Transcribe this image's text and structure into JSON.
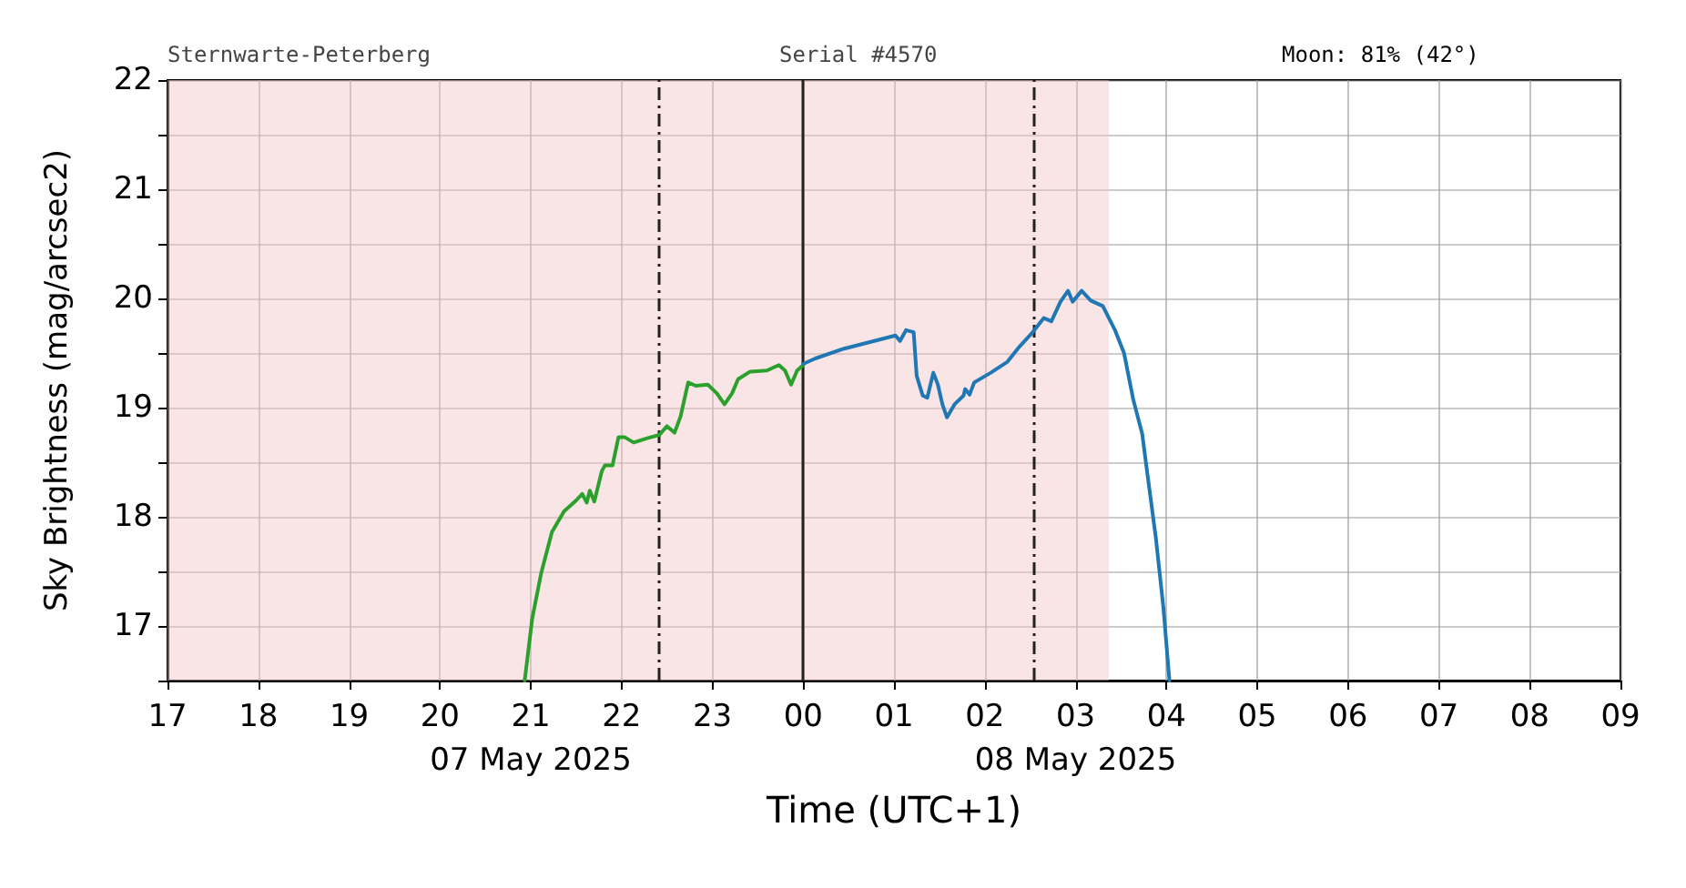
{
  "chart_data": {
    "type": "line",
    "xlabel": "Time (UTC+1)",
    "ylabel": "Sky Brightness (mag/arcsec2)",
    "annotations": [
      "Sternwarte-Peterberg",
      "Serial #4570",
      "Moon: 81% (42°)"
    ],
    "series": [
      {
        "color": "#2ca02c",
        "x": [
          "2025-05-07T20:56",
          "2025-05-07T21:01",
          "2025-05-07T21:07",
          "2025-05-07T21:14",
          "2025-05-07T21:22",
          "2025-05-07T21:30",
          "2025-05-07T21:34",
          "2025-05-07T21:37",
          "2025-05-07T21:39",
          "2025-05-07T21:42",
          "2025-05-07T21:47",
          "2025-05-07T21:49",
          "2025-05-07T21:54",
          "2025-05-07T21:58",
          "2025-05-07T22:02",
          "2025-05-07T22:08",
          "2025-05-07T22:17",
          "2025-05-07T22:25",
          "2025-05-07T22:30",
          "2025-05-07T22:35",
          "2025-05-07T22:39",
          "2025-05-07T22:44",
          "2025-05-07T22:49",
          "2025-05-07T22:57",
          "2025-05-07T23:03",
          "2025-05-07T23:08",
          "2025-05-07T23:13",
          "2025-05-07T23:17",
          "2025-05-07T23:25",
          "2025-05-07T23:36",
          "2025-05-07T23:44",
          "2025-05-07T23:48",
          "2025-05-07T23:52",
          "2025-05-07T23:56",
          "2025-05-08T00:00"
        ],
        "values": [
          16.5,
          17.07,
          17.49,
          17.86,
          18.05,
          18.15,
          18.21,
          18.13,
          18.24,
          18.14,
          18.42,
          18.47,
          18.47,
          18.73,
          18.73,
          18.68,
          18.72,
          18.75,
          18.83,
          18.77,
          18.92,
          19.23,
          19.2,
          19.21,
          19.13,
          19.03,
          19.13,
          19.26,
          19.33,
          19.34,
          19.39,
          19.34,
          19.21,
          19.34,
          19.39
        ]
      },
      {
        "color": "#1f77b4",
        "x": [
          "2025-05-08T00:00",
          "2025-05-08T00:08",
          "2025-05-08T00:27",
          "2025-05-08T00:47",
          "2025-05-08T01:01",
          "2025-05-08T01:04",
          "2025-05-08T01:08",
          "2025-05-08T01:13",
          "2025-05-08T01:15",
          "2025-05-08T01:19",
          "2025-05-08T01:22",
          "2025-05-08T01:26",
          "2025-05-08T01:29",
          "2025-05-08T01:32",
          "2025-05-08T01:35",
          "2025-05-08T01:40",
          "2025-05-08T01:46",
          "2025-05-08T01:47",
          "2025-05-08T01:50",
          "2025-05-08T01:53",
          "2025-05-08T02:04",
          "2025-05-08T02:15",
          "2025-05-08T02:23",
          "2025-05-08T02:31",
          "2025-05-08T02:39",
          "2025-05-08T02:44",
          "2025-05-08T02:50",
          "2025-05-08T02:55",
          "2025-05-08T02:58",
          "2025-05-08T03:04",
          "2025-05-08T03:10",
          "2025-05-08T03:18",
          "2025-05-08T03:26",
          "2025-05-08T03:32",
          "2025-05-08T03:38",
          "2025-05-08T03:44",
          "2025-05-08T03:47",
          "2025-05-08T03:53",
          "2025-05-08T03:58",
          "2025-05-08T04:02"
        ],
        "values": [
          19.4,
          19.45,
          19.54,
          19.61,
          19.66,
          19.61,
          19.71,
          19.69,
          19.29,
          19.11,
          19.09,
          19.32,
          19.21,
          19.03,
          18.91,
          19.03,
          19.11,
          19.17,
          19.12,
          19.23,
          19.32,
          19.42,
          19.56,
          19.68,
          19.82,
          19.79,
          19.97,
          20.07,
          19.97,
          20.07,
          19.98,
          19.93,
          19.71,
          19.5,
          19.08,
          18.76,
          18.44,
          17.81,
          17.17,
          16.5
        ]
      }
    ],
    "xlim": [
      "2025-05-07T17:00",
      "2025-05-08T09:00"
    ],
    "xticks": [
      {
        "value": "2025-05-07T17:00",
        "label": "17"
      },
      {
        "value": "2025-05-07T18:00",
        "label": "18"
      },
      {
        "value": "2025-05-07T19:00",
        "label": "19"
      },
      {
        "value": "2025-05-07T20:00",
        "label": "20"
      },
      {
        "value": "2025-05-07T21:00",
        "label": "21\n07 May 2025"
      },
      {
        "value": "2025-05-07T22:00",
        "label": "22"
      },
      {
        "value": "2025-05-07T23:00",
        "label": "23"
      },
      {
        "value": "2025-05-08T00:00",
        "label": "00"
      },
      {
        "value": "2025-05-08T01:00",
        "label": "01"
      },
      {
        "value": "2025-05-08T02:00",
        "label": "02"
      },
      {
        "value": "2025-05-08T03:00",
        "label": "03\n08 May 2025"
      },
      {
        "value": "2025-05-08T04:00",
        "label": "04"
      },
      {
        "value": "2025-05-08T05:00",
        "label": "05"
      },
      {
        "value": "2025-05-08T06:00",
        "label": "06"
      },
      {
        "value": "2025-05-08T07:00",
        "label": "07"
      },
      {
        "value": "2025-05-08T08:00",
        "label": "08"
      },
      {
        "value": "2025-05-08T09:00",
        "label": "09"
      }
    ],
    "ylim": [
      16.5,
      22
    ],
    "yticks": [
      {
        "value": 16.5,
        "label": null
      },
      17,
      {
        "value": 17.5,
        "label": null
      },
      18,
      {
        "value": 18.5,
        "label": null
      },
      19,
      {
        "value": 19.5,
        "label": null
      },
      20,
      {
        "value": 20.5,
        "label": null
      },
      21,
      {
        "value": 21.5,
        "label": null
      },
      22
    ],
    "ref_lines": [
      {
        "axis": "x",
        "value": "2025-05-07T22:25",
        "color": "#222222",
        "line_style": "dashed"
      },
      {
        "axis": "x",
        "value": "2025-05-08T00:00",
        "color": "#222222",
        "line_style": "solid"
      },
      {
        "axis": "x",
        "value": "2025-05-08T02:32",
        "color": "#222222",
        "line_style": "dashed"
      }
    ],
    "bands": [
      {
        "axis": "x",
        "from": "2025-05-07T17:00",
        "to": "2025-05-08T03:22",
        "color": "#f2c6c6"
      }
    ],
    "grid": true,
    "line_style": "solid",
    "marker": "none"
  }
}
